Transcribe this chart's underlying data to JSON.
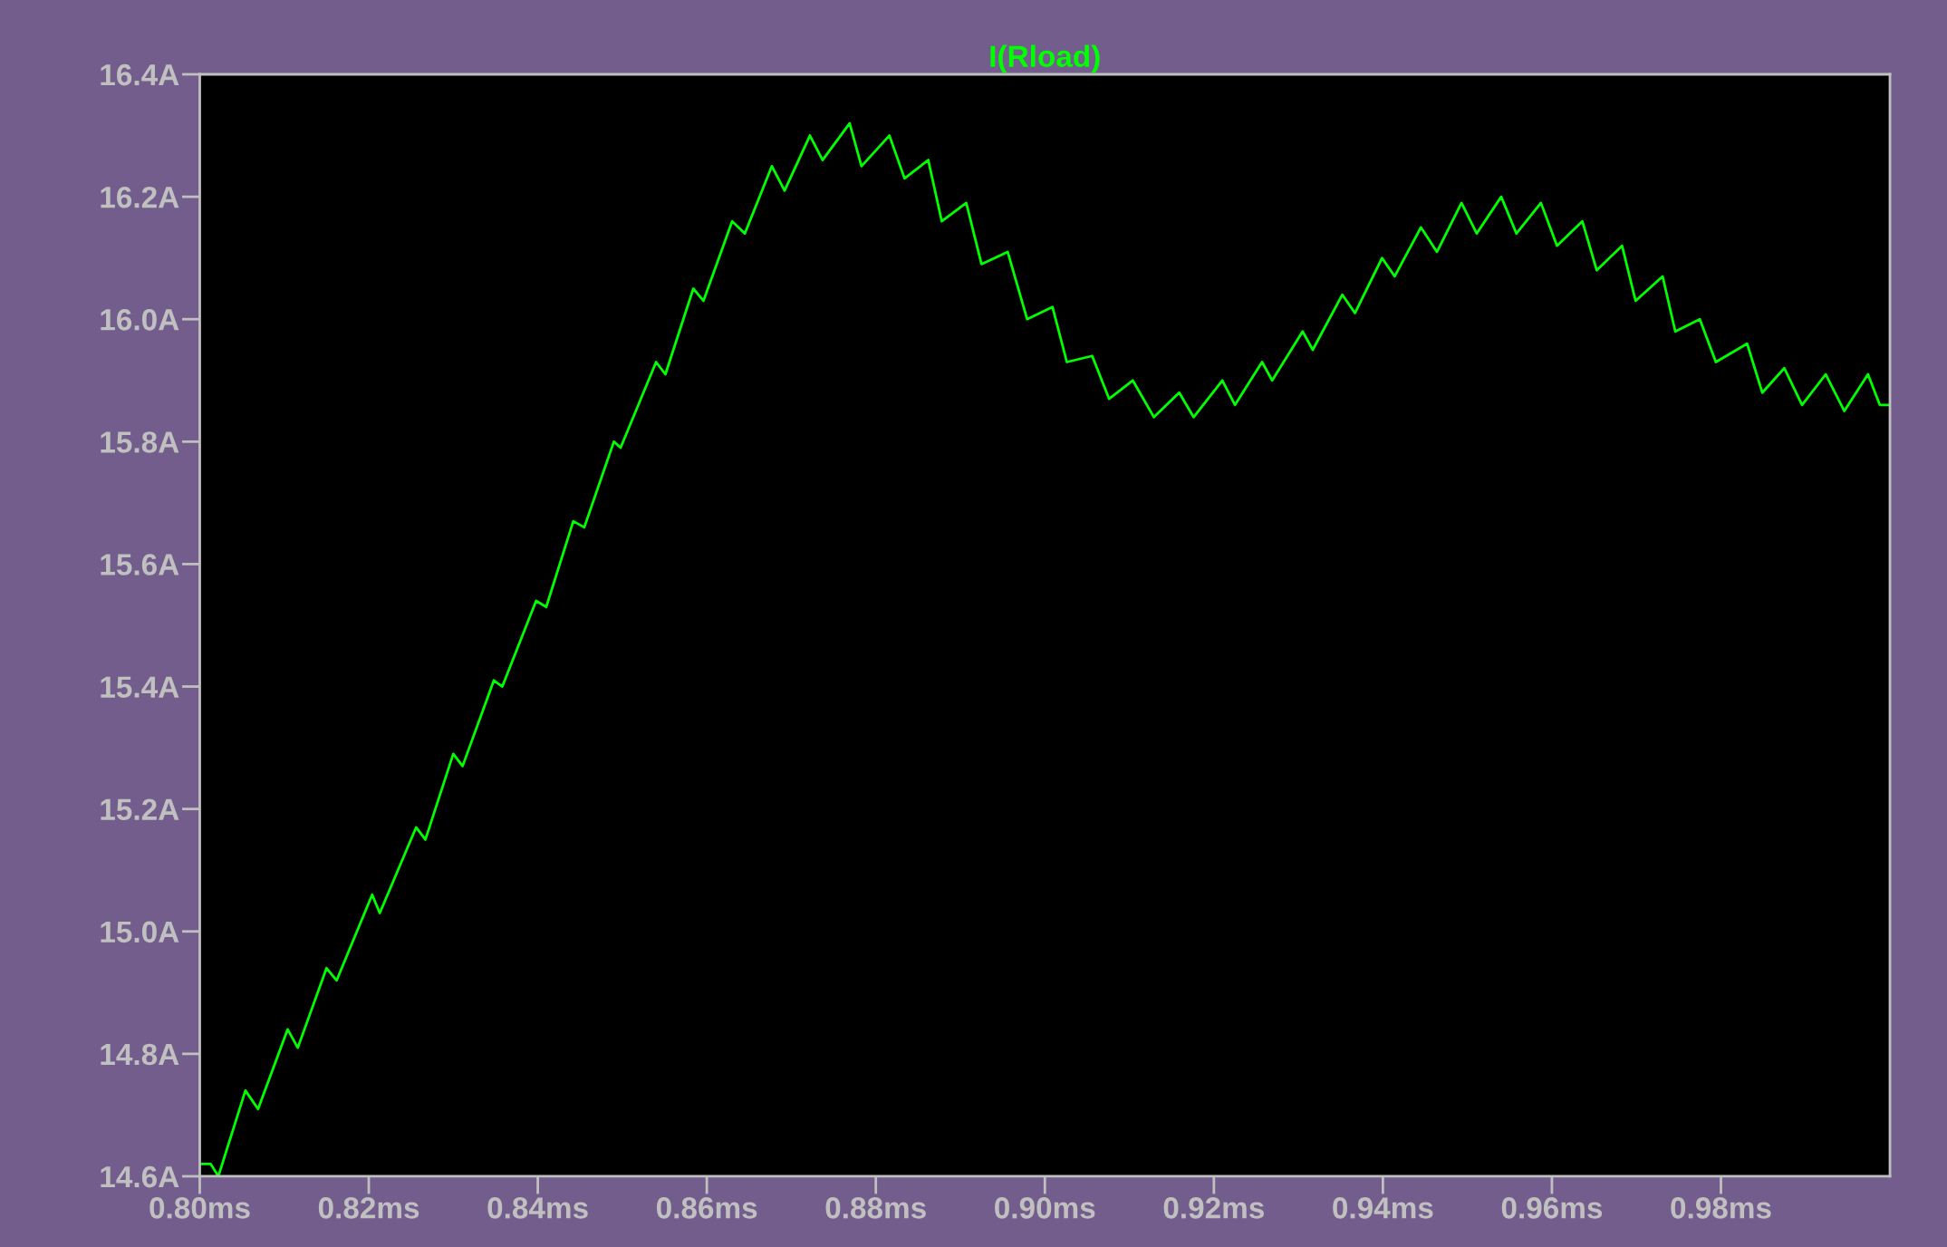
{
  "chart_data": {
    "type": "line",
    "title": "I(Rload)",
    "xlim": [
      0.8,
      1.0
    ],
    "ylim": [
      14.6,
      16.4
    ],
    "xticks": [
      {
        "value": 0.8,
        "label": "0.80ms"
      },
      {
        "value": 0.82,
        "label": "0.82ms"
      },
      {
        "value": 0.84,
        "label": "0.84ms"
      },
      {
        "value": 0.86,
        "label": "0.86ms"
      },
      {
        "value": 0.88,
        "label": "0.88ms"
      },
      {
        "value": 0.9,
        "label": "0.90ms"
      },
      {
        "value": 0.92,
        "label": "0.92ms"
      },
      {
        "value": 0.94,
        "label": "0.94ms"
      },
      {
        "value": 0.96,
        "label": "0.96ms"
      },
      {
        "value": 0.98,
        "label": "0.98ms"
      }
    ],
    "yticks": [
      {
        "value": 14.6,
        "label": "14.6A"
      },
      {
        "value": 14.8,
        "label": "14.8A"
      },
      {
        "value": 15.0,
        "label": "15.0A"
      },
      {
        "value": 15.2,
        "label": "15.2A"
      },
      {
        "value": 15.4,
        "label": "15.4A"
      },
      {
        "value": 15.6,
        "label": "15.6A"
      },
      {
        "value": 15.8,
        "label": "15.8A"
      },
      {
        "value": 16.0,
        "label": "16.0A"
      },
      {
        "value": 16.2,
        "label": "16.2A"
      },
      {
        "value": 16.4,
        "label": "16.4A"
      }
    ],
    "grid": false,
    "legend": false,
    "marker": "none",
    "line_style": "solid",
    "series": [
      {
        "color": "#00ff00",
        "x": [
          0.8,
          0.8013,
          0.8022,
          0.8054,
          0.8069,
          0.8104,
          0.8116,
          0.815,
          0.8162,
          0.8204,
          0.8213,
          0.8256,
          0.8267,
          0.83,
          0.8311,
          0.8348,
          0.8358,
          0.8398,
          0.841,
          0.8442,
          0.8455,
          0.849,
          0.8498,
          0.854,
          0.8551,
          0.8584,
          0.8596,
          0.863,
          0.8645,
          0.8677,
          0.8692,
          0.8722,
          0.8737,
          0.8769,
          0.8783,
          0.8816,
          0.8834,
          0.8862,
          0.8878,
          0.8907,
          0.8925,
          0.8956,
          0.8979,
          0.9009,
          0.9026,
          0.9056,
          0.9076,
          0.9104,
          0.9129,
          0.9159,
          0.9176,
          0.921,
          0.9225,
          0.9257,
          0.9269,
          0.9305,
          0.9317,
          0.9352,
          0.9367,
          0.9399,
          0.9414,
          0.9445,
          0.9464,
          0.9493,
          0.9511,
          0.954,
          0.9558,
          0.9587,
          0.9606,
          0.9636,
          0.9653,
          0.9683,
          0.9699,
          0.9731,
          0.9746,
          0.9775,
          0.9794,
          0.9831,
          0.9849,
          0.9875,
          0.9896,
          0.9924,
          0.9946,
          0.9974,
          0.9988,
          0.9999
        ],
        "values": [
          14.62,
          14.62,
          14.6,
          14.74,
          14.71,
          14.84,
          14.81,
          14.94,
          14.92,
          15.06,
          15.03,
          15.17,
          15.15,
          15.29,
          15.27,
          15.41,
          15.4,
          15.54,
          15.53,
          15.67,
          15.66,
          15.8,
          15.79,
          15.93,
          15.91,
          16.05,
          16.03,
          16.16,
          16.14,
          16.25,
          16.21,
          16.3,
          16.26,
          16.32,
          16.25,
          16.3,
          16.23,
          16.26,
          16.16,
          16.19,
          16.09,
          16.11,
          16.0,
          16.02,
          15.93,
          15.94,
          15.87,
          15.9,
          15.84,
          15.88,
          15.84,
          15.9,
          15.86,
          15.93,
          15.9,
          15.98,
          15.95,
          16.04,
          16.01,
          16.1,
          16.07,
          16.15,
          16.11,
          16.19,
          16.14,
          16.2,
          16.14,
          16.19,
          16.12,
          16.16,
          16.08,
          16.12,
          16.03,
          16.07,
          15.98,
          16.0,
          15.93,
          15.96,
          15.88,
          15.92,
          15.86,
          15.91,
          15.85,
          15.91,
          15.86,
          15.86
        ]
      }
    ]
  }
}
